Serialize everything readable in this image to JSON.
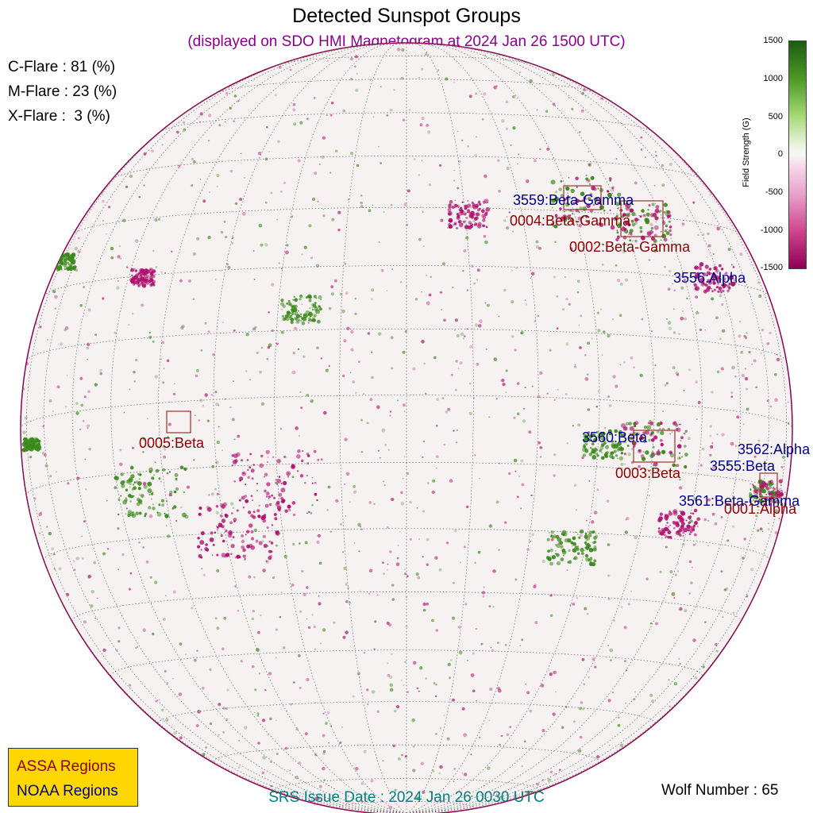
{
  "title": "Detected Sunspot Groups",
  "subtitle": "(displayed on SDO HMI Magnetogram at 2024 Jan 26 1500 UTC)",
  "flare_probabilities": [
    {
      "label": "C-Flare : 81 (%)"
    },
    {
      "label": "M-Flare : 23 (%)"
    },
    {
      "label": "X-Flare :  3 (%)"
    }
  ],
  "regions": {
    "noaa": [
      {
        "label": "3559:Beta-Gamma"
      },
      {
        "label": "3556:Alpha"
      },
      {
        "label": "3560:Beta"
      },
      {
        "label": "3562:Alpha"
      },
      {
        "label": "3555:Beta"
      },
      {
        "label": "3561:Beta-Gamma"
      }
    ],
    "assa": [
      {
        "label": "0004:Beta-Gamma"
      },
      {
        "label": "0002:Beta-Gamma"
      },
      {
        "label": "0005:Beta"
      },
      {
        "label": "0003:Beta"
      },
      {
        "label": "0001:Alpha"
      }
    ]
  },
  "colorbar": {
    "label": "Field Strength (G)",
    "ticks": [
      "1500",
      "1000",
      "500",
      "0",
      "-500",
      "-1000",
      "-1500"
    ]
  },
  "legend": {
    "assa": "ASSA Regions",
    "noaa": "NOAA Regions"
  },
  "srs_issue": "SRS Issue Date : 2024 Jan 26 0030 UTC",
  "wolf_number": "Wolf Number : 65",
  "colors": {
    "noaa": "#00008b",
    "assa": "#8b0000",
    "positive": "#3a8a1a",
    "negative": "#b0106e",
    "legend_bg": "#ffd700"
  }
}
